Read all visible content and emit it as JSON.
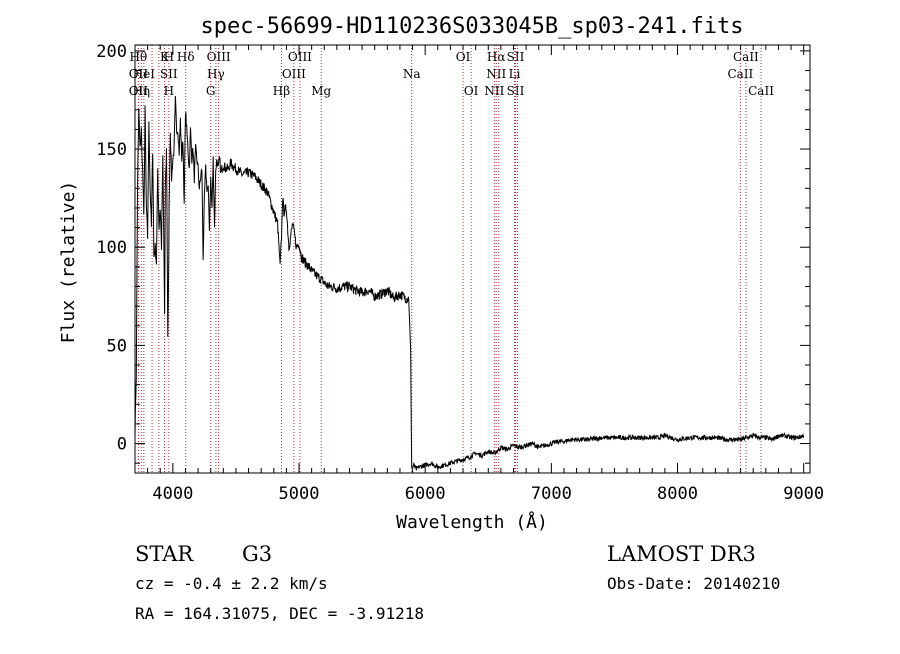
{
  "chart_data": {
    "type": "line",
    "title": "spec-56699-HD110236S033045B_sp03-241.fits",
    "xlabel": "Wavelength (Å)",
    "ylabel": "Flux (relative)",
    "xlim": [
      3700,
      9050
    ],
    "ylim": [
      -15,
      203
    ],
    "xticks": [
      4000,
      5000,
      6000,
      7000,
      8000,
      9000
    ],
    "yticks": [
      0,
      50,
      100,
      150,
      200
    ],
    "grid": false,
    "series": [
      {
        "x": [
          3700,
          3710,
          3720,
          3730,
          3740,
          3750,
          3760,
          3770,
          3780,
          3790,
          3800,
          3810,
          3820,
          3830,
          3840,
          3850,
          3860,
          3870,
          3880,
          3890,
          3900,
          3910,
          3920,
          3930,
          3935,
          3940,
          3950,
          3960,
          3965,
          3970,
          3980,
          3990,
          4000,
          4010,
          4020,
          4030,
          4040,
          4050,
          4060,
          4070,
          4080,
          4090,
          4100,
          4110,
          4120,
          4130,
          4140,
          4150,
          4160,
          4170,
          4180,
          4190,
          4200,
          4210,
          4220,
          4230,
          4240,
          4250,
          4260,
          4270,
          4280,
          4290,
          4300,
          4310,
          4320,
          4330,
          4340,
          4350,
          4360,
          4370,
          4380,
          4400,
          4420,
          4440,
          4460,
          4480,
          4500,
          4550,
          4600,
          4650,
          4700,
          4750,
          4800,
          4830,
          4850,
          4861,
          4870,
          4880,
          4900,
          4920,
          4950,
          4980,
          5000,
          5020,
          5050,
          5080,
          5100,
          5130,
          5170,
          5200,
          5230,
          5270,
          5300,
          5350,
          5400,
          5450,
          5500,
          5550,
          5600,
          5650,
          5700,
          5750,
          5800,
          5850,
          5870,
          5885,
          5890,
          5893,
          5900,
          5910,
          5930,
          5950,
          6000,
          6050,
          6100,
          6150,
          6200,
          6250,
          6300,
          6350,
          6400,
          6450,
          6500,
          6550,
          6600,
          6650,
          6700,
          6750,
          6800,
          6850,
          6900,
          6950,
          7000,
          7050,
          7100,
          7150,
          7200,
          7300,
          7400,
          7500,
          7600,
          7700,
          7800,
          7850,
          7900,
          8000,
          8100,
          8200,
          8300,
          8400,
          8500,
          8550,
          8600,
          8650,
          8700,
          8750,
          8800,
          8850,
          8900,
          8950,
          9000
        ],
        "y": [
          5,
          35,
          130,
          170,
          150,
          160,
          140,
          115,
          170,
          120,
          105,
          165,
          130,
          110,
          150,
          95,
          100,
          92,
          140,
          110,
          120,
          100,
          145,
          95,
          65,
          130,
          150,
          55,
          75,
          120,
          160,
          135,
          145,
          150,
          175,
          160,
          160,
          148,
          165,
          145,
          155,
          120,
          170,
          160,
          150,
          140,
          160,
          145,
          150,
          135,
          150,
          145,
          140,
          130,
          135,
          140,
          95,
          125,
          140,
          130,
          130,
          110,
          135,
          120,
          145,
          110,
          140,
          145,
          140,
          145,
          138,
          142,
          140,
          140,
          143,
          141,
          140,
          137,
          138,
          136,
          132,
          128,
          118,
          112,
          90,
          105,
          125,
          118,
          120,
          100,
          112,
          100,
          102,
          95,
          92,
          90,
          88,
          86,
          84,
          82,
          80,
          80,
          79,
          80,
          80,
          78,
          77,
          78,
          75,
          76,
          78,
          74,
          76,
          74,
          74,
          45,
          8,
          -12,
          -12,
          -11,
          -13,
          -12,
          -11,
          -10,
          -12,
          -11,
          -10,
          -9,
          -8,
          -7,
          -5,
          -6,
          -4,
          -5,
          -2,
          -3,
          -1,
          -2,
          -1,
          0,
          -2,
          -1,
          0,
          1,
          1,
          2,
          2,
          2,
          3,
          3,
          3,
          3,
          3,
          3,
          4,
          2,
          3,
          3,
          3,
          2,
          2,
          3,
          4,
          3,
          3,
          2,
          4,
          4,
          3,
          3,
          4
        ]
      }
    ],
    "line_markers": [
      {
        "wave": 3727,
        "labels": [
          "Hθ",
          "OII",
          "OII"
        ]
      },
      {
        "wave": 3750,
        "labels": [
          "",
          "",
          "Hη"
        ]
      },
      {
        "wave": 3770,
        "labels": [
          "",
          "HeI",
          ""
        ]
      },
      {
        "wave": 3835,
        "labels": [
          "",
          "",
          ""
        ]
      },
      {
        "wave": 3889,
        "labels": [
          "",
          "",
          ""
        ]
      },
      {
        "wave": 3934,
        "labels": [
          "K",
          "",
          ""
        ]
      },
      {
        "wave": 3968,
        "labels": [
          "H",
          "SII",
          "H"
        ]
      },
      {
        "wave": 4102,
        "labels": [
          "Hδ",
          "",
          ""
        ]
      },
      {
        "wave": 4300,
        "labels": [
          "",
          "",
          "G"
        ]
      },
      {
        "wave": 4341,
        "labels": [
          "",
          "Hγ",
          ""
        ]
      },
      {
        "wave": 4363,
        "labels": [
          "OIII",
          "",
          ""
        ]
      },
      {
        "wave": 4861,
        "labels": [
          "",
          "",
          "Hβ"
        ]
      },
      {
        "wave": 4959,
        "labels": [
          "",
          "OIII",
          ""
        ]
      },
      {
        "wave": 5007,
        "labels": [
          "OIII",
          "",
          ""
        ]
      },
      {
        "wave": 5176,
        "labels": [
          "",
          "",
          "Mg"
        ]
      },
      {
        "wave": 5893,
        "labels": [
          "",
          "Na",
          ""
        ]
      },
      {
        "wave": 6300,
        "labels": [
          "OI",
          "",
          ""
        ]
      },
      {
        "wave": 6364,
        "labels": [
          "",
          "",
          "OI"
        ]
      },
      {
        "wave": 6548,
        "labels": [
          "",
          "",
          "NII"
        ]
      },
      {
        "wave": 6563,
        "labels": [
          "Hα",
          "NII",
          ""
        ]
      },
      {
        "wave": 6583,
        "labels": [
          "",
          "",
          ""
        ]
      },
      {
        "wave": 6708,
        "labels": [
          "",
          "Li",
          ""
        ]
      },
      {
        "wave": 6716,
        "labels": [
          "SII",
          "",
          "SII"
        ]
      },
      {
        "wave": 6731,
        "labels": [
          "",
          "",
          ""
        ]
      },
      {
        "wave": 8498,
        "labels": [
          "",
          "CaII",
          ""
        ]
      },
      {
        "wave": 8542,
        "labels": [
          "CaII",
          "",
          ""
        ]
      },
      {
        "wave": 8662,
        "labels": [
          "",
          "",
          "CaII"
        ]
      }
    ]
  },
  "info": {
    "class": "STAR",
    "subclass": "G3",
    "cz": "cz = -0.4 ± 2.2 km/s",
    "radec": "RA = 164.31075, DEC =  -3.91218",
    "survey": "LAMOST DR3",
    "obsdate": "Obs-Date: 20140210"
  }
}
